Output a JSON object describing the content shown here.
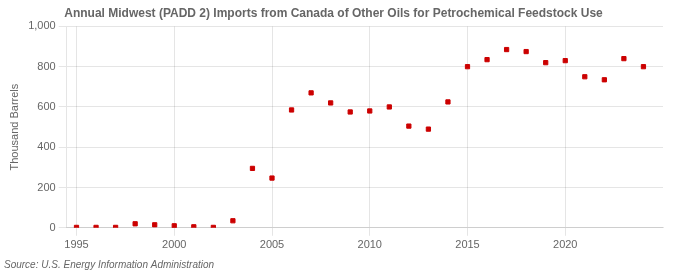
{
  "chart_data": {
    "type": "scatter",
    "title": "Annual Midwest (PADD 2) Imports from Canada of Other Oils for Petrochemical Feedstock Use",
    "ylabel": "Thousand Barrels",
    "annotations": [
      "Source: U.S. Energy Information Administration"
    ],
    "x": [
      1995,
      1996,
      1997,
      1998,
      1999,
      2000,
      2001,
      2002,
      2003,
      2004,
      2005,
      2006,
      2007,
      2008,
      2009,
      2010,
      2011,
      2012,
      2013,
      2014,
      2015,
      2016,
      2017,
      2018,
      2019,
      2020,
      2021,
      2022,
      2023,
      2024
    ],
    "values": [
      2,
      2,
      2,
      20,
      15,
      10,
      5,
      2,
      35,
      295,
      247,
      585,
      670,
      620,
      575,
      580,
      600,
      505,
      490,
      625,
      800,
      835,
      885,
      875,
      820,
      830,
      750,
      735,
      840,
      800
    ],
    "color": "#cc0000",
    "marker": "square",
    "xlim": [
      1994.5,
      2025
    ],
    "xticks": [
      1995,
      2000,
      2005,
      2010,
      2015,
      2020
    ],
    "ylim": [
      0,
      1000
    ],
    "yticks": [
      0,
      200,
      400,
      600,
      800,
      {
        "value": 1000,
        "label": "1,000"
      }
    ],
    "grid": true
  }
}
